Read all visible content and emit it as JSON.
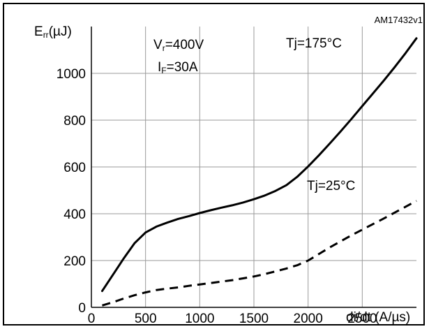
{
  "chart_data": {
    "type": "line",
    "figure_code": "AM17432v1",
    "ylabel": {
      "main": "E",
      "sub": "rr",
      "unit": "(µJ)"
    },
    "xlabel": "di/dt (A/µs)",
    "xlim": [
      0,
      3000
    ],
    "ylim": [
      0,
      1200
    ],
    "x_ticks": [
      0,
      500,
      1000,
      1500,
      2000,
      2500
    ],
    "y_ticks": [
      0,
      200,
      400,
      600,
      800,
      1000
    ],
    "grid": true,
    "conditions": {
      "vr": {
        "main": "V",
        "sub": "r",
        "rest": "=400V"
      },
      "if": {
        "main": "I",
        "sub": "F",
        "rest": "=30A"
      }
    },
    "series": [
      {
        "name": "Tj=175°C",
        "style": "solid",
        "color": "#000000",
        "x": [
          100,
          200,
          300,
          400,
          500,
          600,
          700,
          800,
          900,
          1000,
          1100,
          1200,
          1300,
          1400,
          1500,
          1600,
          1700,
          1800,
          1900,
          2000,
          2100,
          2200,
          2300,
          2400,
          2500,
          2600,
          2700,
          2800,
          2900,
          3000
        ],
        "y": [
          70,
          140,
          210,
          275,
          320,
          345,
          362,
          378,
          390,
          403,
          415,
          426,
          436,
          448,
          462,
          478,
          498,
          522,
          558,
          602,
          650,
          700,
          752,
          805,
          860,
          915,
          970,
          1027,
          1087,
          1150
        ]
      },
      {
        "name": "Tj=25°C",
        "style": "dashed",
        "color": "#000000",
        "x": [
          100,
          200,
          300,
          400,
          500,
          600,
          700,
          800,
          900,
          1000,
          1100,
          1200,
          1300,
          1400,
          1500,
          1600,
          1700,
          1800,
          1900,
          2000,
          2100,
          2200,
          2300,
          2400,
          2500,
          2600,
          2700,
          2800,
          2900,
          3000
        ],
        "y": [
          8,
          22,
          38,
          52,
          64,
          74,
          80,
          85,
          92,
          98,
          104,
          110,
          116,
          124,
          132,
          142,
          154,
          166,
          180,
          200,
          228,
          256,
          282,
          308,
          332,
          356,
          380,
          405,
          430,
          455
        ]
      }
    ]
  }
}
